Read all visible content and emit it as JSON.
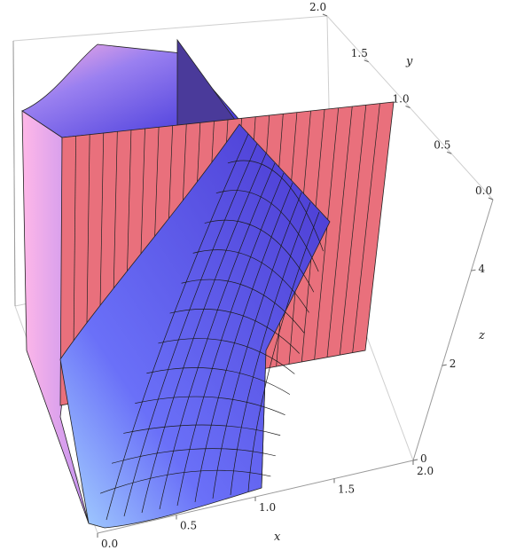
{
  "chart_data": {
    "type": "surface3d",
    "x": {
      "label": "x",
      "range": [
        0,
        2
      ],
      "ticks": [
        "0.0",
        "0.5",
        "1.0",
        "1.5",
        "2.0"
      ]
    },
    "y": {
      "label": "y",
      "range": [
        0,
        2
      ],
      "ticks": [
        "0.0",
        "0.5",
        "1.0",
        "1.5",
        "2.0"
      ]
    },
    "z": {
      "label": "z",
      "range": [
        0,
        5.5
      ],
      "ticks": [
        "0",
        "2",
        "4"
      ]
    },
    "box": true,
    "surfaces": [
      {
        "id": "curved-surface",
        "description_color": "#6a5cf0",
        "color": "#6a5cf0",
        "shading": "lit"
      },
      {
        "id": "vertical-plane-x",
        "color": "#5b3fb0"
      },
      {
        "id": "vertical-plane-y",
        "color": "#e9707c"
      }
    ],
    "colors": {
      "box": "#c8c8c8",
      "axis": "#6b6b6b",
      "mesh": "#1a1a1a",
      "pink_plane": "#e9707c",
      "pink_plane_dark": "#d45966",
      "purple_plane": "#4a3a9a",
      "surface_light": "#f0c8f0",
      "surface_mid": "#7a6af5",
      "surface_dark": "#3a2fd0"
    }
  }
}
